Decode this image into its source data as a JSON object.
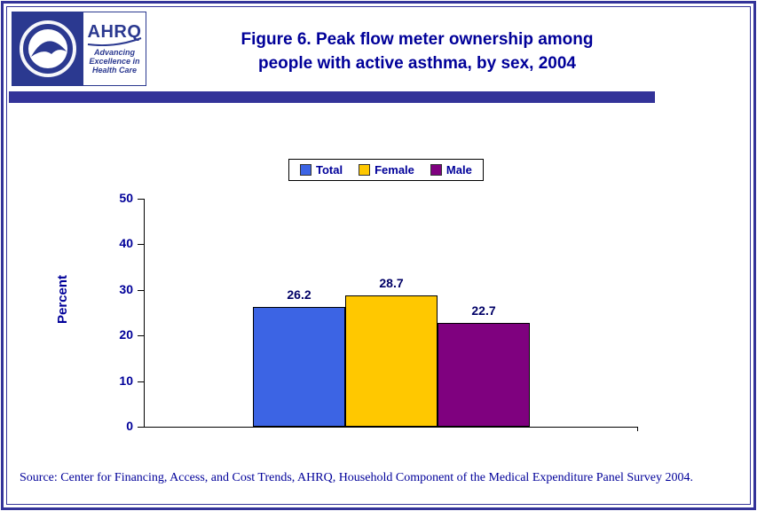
{
  "header": {
    "title_line1": "Figure 6. Peak flow meter ownership among",
    "title_line2": "people with active asthma, by sex, 2004",
    "ahrq_logo": {
      "acronym": "AHRQ",
      "tagline_line1": "Advancing",
      "tagline_line2": "Excellence in",
      "tagline_line3": "Health Care"
    }
  },
  "colors": {
    "frame_navy": "#333399",
    "title_navy": "#000099",
    "bar_total_blue": "#3c64e4",
    "bar_female_gold": "#ffc800",
    "bar_male_purple": "#7f017f"
  },
  "chart_data": {
    "type": "bar",
    "title": "Figure 6. Peak flow meter ownership among people with active asthma, by sex, 2004",
    "xlabel": "",
    "ylabel": "Percent",
    "ylim": [
      0,
      50
    ],
    "yticks": [
      0,
      10,
      20,
      30,
      40,
      50
    ],
    "grid": false,
    "legend_position": "top-center",
    "categories": [
      "Total",
      "Female",
      "Male"
    ],
    "series": [
      {
        "name": "Total",
        "value": 26.2,
        "color": "#3c64e4"
      },
      {
        "name": "Female",
        "value": 28.7,
        "color": "#ffc800"
      },
      {
        "name": "Male",
        "value": 22.7,
        "color": "#7f017f"
      }
    ]
  },
  "footer": {
    "source": "Source: Center for Financing, Access, and Cost Trends, AHRQ, Household Component of the Medical Expenditure Panel Survey 2004."
  }
}
